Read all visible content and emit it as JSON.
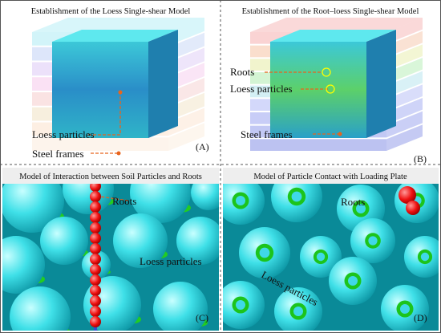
{
  "panels": [
    {
      "title": "Establishment of the Loess Single-shear Model",
      "labels": [
        "Loess particles",
        "Steel frames"
      ],
      "tag": "(A)"
    },
    {
      "title": "Establishment of the Root–loess Single-shear Model",
      "labels": [
        "Roots",
        "Loess particles",
        "Steel frames"
      ],
      "tag": "(B)"
    },
    {
      "title": "Model of Interaction between Soil Particles and Roots",
      "labels": [
        "Roots",
        "Loess particles"
      ],
      "tag": "(C)"
    },
    {
      "title": "Model of Particle Contact with Loading Plate",
      "labels": [
        "Roots",
        "Loess particles"
      ],
      "tag": "(D)"
    }
  ]
}
